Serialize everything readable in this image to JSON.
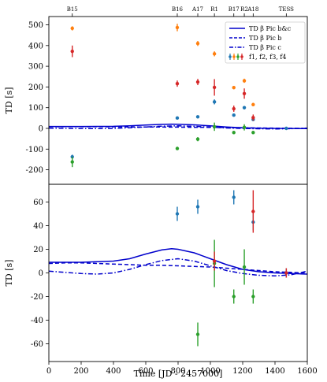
{
  "chart_data": {
    "type": "scatter",
    "xlabel": "Time [JD - 2457000]",
    "xlim": [
      0,
      1600
    ],
    "xticks": [
      0,
      200,
      400,
      600,
      800,
      1000,
      1200,
      1400,
      1600
    ],
    "epoch_labels": [
      {
        "label": "B15",
        "x": 145
      },
      {
        "label": "B16",
        "x": 795
      },
      {
        "label": "A17",
        "x": 922
      },
      {
        "label": "R1",
        "x": 1025
      },
      {
        "label": "B17",
        "x": 1145
      },
      {
        "label": "R2",
        "x": 1210
      },
      {
        "label": "A18",
        "x": 1265
      },
      {
        "label": "TESS",
        "x": 1470
      }
    ],
    "colors": {
      "f1": "#1f77b4",
      "f2": "#ff7f0e",
      "f3": "#2ca02c",
      "f4": "#d62728",
      "model": "#0000cc"
    },
    "panels": [
      {
        "id": "top",
        "ylabel": "TD [s]",
        "ylim": [
          -270,
          540
        ],
        "yticks": [
          -200,
          -100,
          0,
          100,
          200,
          300,
          400,
          500
        ],
        "legend": {
          "position": "top-right",
          "entries": [
            {
              "label": "TD β Pic b&c",
              "style": "solid"
            },
            {
              "label": "TD β Pic b",
              "style": "dashed"
            },
            {
              "label": "TD β Pic c",
              "style": "dashdot"
            },
            {
              "label": "f1, f2, f3, f4",
              "style": "markers"
            }
          ]
        },
        "series": [
          {
            "name": "f1",
            "color": "#1f77b4",
            "points": [
              [
                145,
                -137,
                10
              ],
              [
                795,
                50,
                6
              ],
              [
                922,
                56,
                6
              ],
              [
                1025,
                128,
                12
              ],
              [
                1145,
                64,
                6
              ],
              [
                1210,
                100,
                8
              ],
              [
                1265,
                43,
                7
              ],
              [
                1470,
                0,
                4
              ]
            ]
          },
          {
            "name": "f2",
            "color": "#ff7f0e",
            "points": [
              [
                145,
                483,
                10
              ],
              [
                795,
                487,
                18
              ],
              [
                922,
                410,
                12
              ],
              [
                1025,
                360,
                12
              ],
              [
                1145,
                197,
                8
              ],
              [
                1210,
                230,
                10
              ],
              [
                1265,
                115,
                6
              ]
            ]
          },
          {
            "name": "f3",
            "color": "#2ca02c",
            "points": [
              [
                145,
                -162,
                25
              ],
              [
                795,
                -97,
                6
              ],
              [
                922,
                -52,
                10
              ],
              [
                1025,
                8,
                20
              ],
              [
                1145,
                -20,
                6
              ],
              [
                1210,
                5,
                15
              ],
              [
                1265,
                -20,
                6
              ]
            ]
          },
          {
            "name": "f4",
            "color": "#d62728",
            "points": [
              [
                145,
                372,
                28
              ],
              [
                795,
                216,
                15
              ],
              [
                922,
                224,
                15
              ],
              [
                1025,
                198,
                40
              ],
              [
                1145,
                95,
                15
              ],
              [
                1210,
                168,
                25
              ],
              [
                1265,
                52,
                15
              ]
            ]
          }
        ]
      },
      {
        "id": "bottom",
        "ylabel": "TD [s]",
        "ylim": [
          -75,
          75
        ],
        "yticks": [
          -60,
          -40,
          -20,
          0,
          20,
          40,
          60
        ],
        "series": [
          {
            "name": "f1",
            "color": "#1f77b4",
            "points": [
              [
                795,
                50,
                6
              ],
              [
                922,
                56,
                6
              ],
              [
                1145,
                64,
                6
              ],
              [
                1265,
                43,
                7
              ],
              [
                1470,
                0,
                4
              ]
            ]
          },
          {
            "name": "f3",
            "color": "#2ca02c",
            "points": [
              [
                922,
                -52,
                10
              ],
              [
                1025,
                8,
                20
              ],
              [
                1145,
                -20,
                6
              ],
              [
                1210,
                5,
                15
              ],
              [
                1265,
                -20,
                6
              ]
            ]
          },
          {
            "name": "f4",
            "color": "#d62728",
            "points": [
              [
                1025,
                10,
                8
              ],
              [
                1265,
                52,
                18
              ],
              [
                1470,
                0,
                4
              ]
            ]
          }
        ]
      }
    ],
    "models": [
      {
        "name": "TD β Pic b&c",
        "style": "solid",
        "points": [
          [
            0,
            9
          ],
          [
            100,
            9
          ],
          [
            200,
            9
          ],
          [
            300,
            9.5
          ],
          [
            400,
            10
          ],
          [
            500,
            12
          ],
          [
            600,
            16
          ],
          [
            700,
            19.5
          ],
          [
            760,
            20.5
          ],
          [
            800,
            20
          ],
          [
            900,
            17
          ],
          [
            1000,
            12
          ],
          [
            1100,
            7
          ],
          [
            1200,
            3
          ],
          [
            1300,
            1
          ],
          [
            1400,
            0
          ],
          [
            1500,
            -0.5
          ],
          [
            1600,
            -1
          ]
        ]
      },
      {
        "name": "TD β Pic b",
        "style": "dashed",
        "points": [
          [
            0,
            8
          ],
          [
            100,
            8.5
          ],
          [
            200,
            8.5
          ],
          [
            300,
            8
          ],
          [
            400,
            7.5
          ],
          [
            500,
            7
          ],
          [
            600,
            6.5
          ],
          [
            700,
            6.5
          ],
          [
            800,
            6
          ],
          [
            900,
            5.5
          ],
          [
            1000,
            5
          ],
          [
            1100,
            4
          ],
          [
            1200,
            3
          ],
          [
            1300,
            2
          ],
          [
            1400,
            1
          ],
          [
            1500,
            0.5
          ],
          [
            1600,
            0
          ]
        ]
      },
      {
        "name": "TD β Pic c",
        "style": "dashdot",
        "points": [
          [
            0,
            1.5
          ],
          [
            100,
            0.5
          ],
          [
            200,
            -0.5
          ],
          [
            300,
            -1
          ],
          [
            400,
            0
          ],
          [
            500,
            3
          ],
          [
            600,
            7
          ],
          [
            700,
            10.5
          ],
          [
            800,
            12
          ],
          [
            900,
            10
          ],
          [
            1000,
            6
          ],
          [
            1100,
            2
          ],
          [
            1200,
            -0.5
          ],
          [
            1300,
            -2
          ],
          [
            1400,
            -2.5
          ],
          [
            1500,
            -1.5
          ],
          [
            1600,
            1.5
          ]
        ]
      }
    ]
  }
}
